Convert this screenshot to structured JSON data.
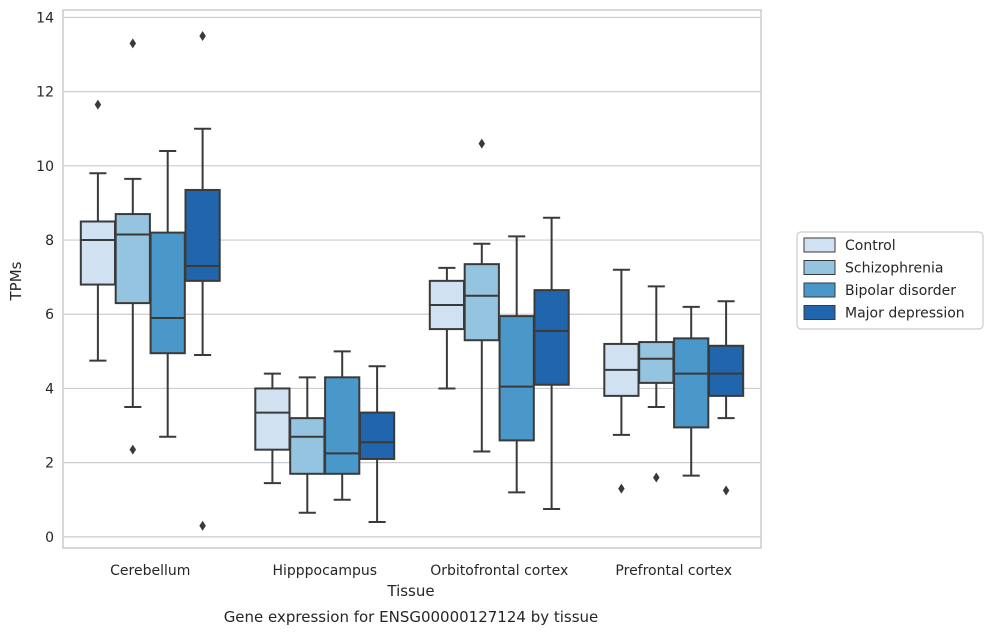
{
  "caption": "Gene expression for ENSG00000127124 by tissue",
  "chart_data": {
    "type": "box",
    "xlabel": "Tissue",
    "ylabel": "TPMs",
    "ylim": [
      -0.3,
      14.2
    ],
    "yticks": [
      0,
      2,
      4,
      6,
      8,
      10,
      12,
      14
    ],
    "grid": "horizontal",
    "legend_position": "right",
    "categories": [
      "Cerebellum",
      "Hipppocampus",
      "Orbitofrontal cortex",
      "Prefrontal cortex"
    ],
    "series": [
      {
        "name": "Control",
        "color": "#d0e1f2",
        "boxes": [
          {
            "whisker_low": 4.75,
            "q1": 6.8,
            "median": 8.0,
            "q3": 8.5,
            "whisker_high": 9.8,
            "outliers": [
              11.65
            ]
          },
          {
            "whisker_low": 1.45,
            "q1": 2.35,
            "median": 3.35,
            "q3": 4.0,
            "whisker_high": 4.4,
            "outliers": []
          },
          {
            "whisker_low": 4.0,
            "q1": 5.6,
            "median": 6.25,
            "q3": 6.9,
            "whisker_high": 7.25,
            "outliers": []
          },
          {
            "whisker_low": 2.75,
            "q1": 3.8,
            "median": 4.5,
            "q3": 5.2,
            "whisker_high": 7.2,
            "outliers": [
              1.3
            ]
          }
        ]
      },
      {
        "name": "Schizophrenia",
        "color": "#94c4df",
        "boxes": [
          {
            "whisker_low": 3.5,
            "q1": 6.3,
            "median": 8.15,
            "q3": 8.7,
            "whisker_high": 9.65,
            "outliers": [
              13.3,
              2.35
            ]
          },
          {
            "whisker_low": 0.65,
            "q1": 1.7,
            "median": 2.7,
            "q3": 3.2,
            "whisker_high": 4.3,
            "outliers": []
          },
          {
            "whisker_low": 2.3,
            "q1": 5.3,
            "median": 6.5,
            "q3": 7.35,
            "whisker_high": 7.9,
            "outliers": [
              10.6
            ]
          },
          {
            "whisker_low": 3.5,
            "q1": 4.15,
            "median": 4.8,
            "q3": 5.25,
            "whisker_high": 6.75,
            "outliers": [
              1.6
            ]
          }
        ]
      },
      {
        "name": "Bipolar disorder",
        "color": "#4a98c9",
        "boxes": [
          {
            "whisker_low": 2.7,
            "q1": 4.95,
            "median": 5.9,
            "q3": 8.2,
            "whisker_high": 10.4,
            "outliers": []
          },
          {
            "whisker_low": 1.0,
            "q1": 1.7,
            "median": 2.25,
            "q3": 4.3,
            "whisker_high": 5.0,
            "outliers": []
          },
          {
            "whisker_low": 1.2,
            "q1": 2.6,
            "median": 4.05,
            "q3": 5.95,
            "whisker_high": 8.1,
            "outliers": []
          },
          {
            "whisker_low": 1.65,
            "q1": 2.95,
            "median": 4.4,
            "q3": 5.35,
            "whisker_high": 6.2,
            "outliers": []
          }
        ]
      },
      {
        "name": "Major depression",
        "color": "#2166ac",
        "boxes": [
          {
            "whisker_low": 4.9,
            "q1": 6.9,
            "median": 7.3,
            "q3": 9.35,
            "whisker_high": 11.0,
            "outliers": [
              13.5,
              0.3
            ]
          },
          {
            "whisker_low": 0.4,
            "q1": 2.1,
            "median": 2.55,
            "q3": 3.35,
            "whisker_high": 4.6,
            "outliers": []
          },
          {
            "whisker_low": 0.75,
            "q1": 4.1,
            "median": 5.55,
            "q3": 6.65,
            "whisker_high": 8.6,
            "outliers": []
          },
          {
            "whisker_low": 3.2,
            "q1": 3.8,
            "median": 4.4,
            "q3": 5.15,
            "whisker_high": 6.35,
            "outliers": [
              1.25
            ]
          }
        ]
      }
    ]
  }
}
